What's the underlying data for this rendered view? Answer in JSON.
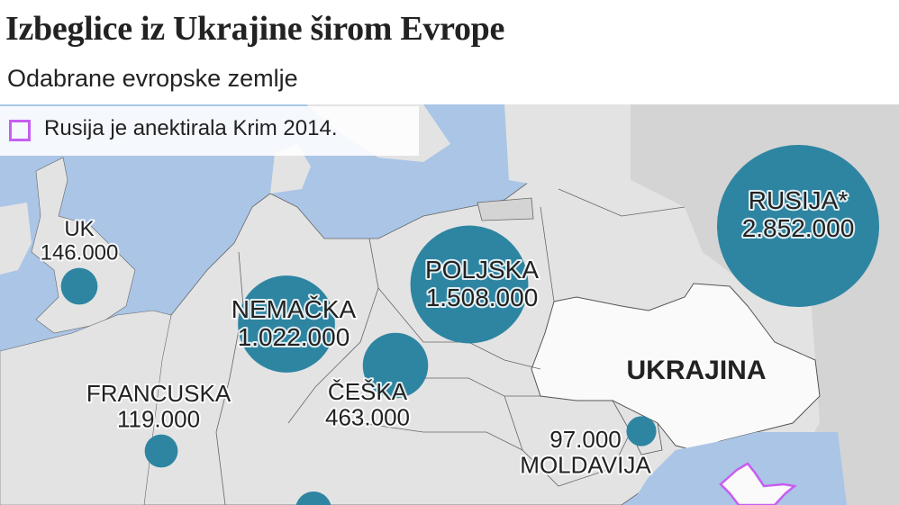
{
  "header": {
    "title": "Izbeglice iz Ukrajine širom Evrope",
    "subtitle": "Odabrane evropske zemlje"
  },
  "legend": {
    "label": "Rusija je anektirala Krim 2014.",
    "swatch_color": "#c65ef0"
  },
  "colors": {
    "sea": "#aac5e6",
    "land": "#e3e3e3",
    "russia_land": "#d4d4d4",
    "ukraine_land": "#fafafa",
    "bubble": "#2e85a2",
    "crimea_outline": "#c65ef0"
  },
  "countries": [
    {
      "id": "uk",
      "name": "UK",
      "value_label": "146.000",
      "value": 146000
    },
    {
      "id": "nemacka",
      "name": "NEMAČKA",
      "value_label": "1.022.000",
      "value": 1022000
    },
    {
      "id": "poljska",
      "name": "POLJSKA",
      "value_label": "1.508.000",
      "value": 1508000
    },
    {
      "id": "ceska",
      "name": "ČEŠKA",
      "value_label": "463.000",
      "value": 463000
    },
    {
      "id": "rusija",
      "name": "RUSIJA*",
      "value_label": "2.852.000",
      "value": 2852000
    },
    {
      "id": "francuska",
      "name": "FRANCUSKA",
      "value_label": "119.000",
      "value": 119000
    },
    {
      "id": "moldavija",
      "name": "MOLDAVIJA",
      "value_label": "97.000",
      "value": 97000
    }
  ],
  "ukraine_label": "UKRAJINA"
}
